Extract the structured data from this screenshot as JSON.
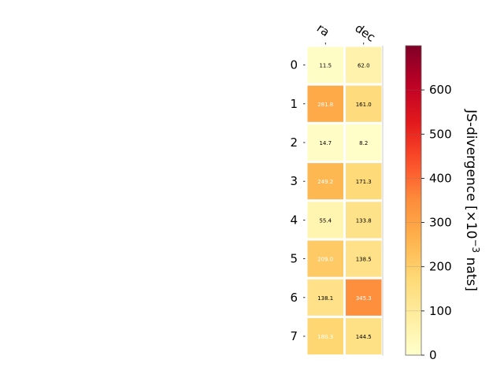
{
  "chart_data": {
    "type": "heatmap",
    "columns": [
      "ra",
      "dec"
    ],
    "rows": [
      "0",
      "1",
      "2",
      "3",
      "4",
      "5",
      "6",
      "7"
    ],
    "values": [
      [
        11.5,
        62.0
      ],
      [
        281.8,
        161.0
      ],
      [
        14.7,
        8.2
      ],
      [
        249.2,
        171.3
      ],
      [
        55.4,
        133.8
      ],
      [
        209.0,
        138.5
      ],
      [
        138.1,
        345.3
      ],
      [
        180.3,
        144.5
      ]
    ],
    "value_labels": [
      [
        "11.5",
        "62.0"
      ],
      [
        "281.8",
        "161.0"
      ],
      [
        "14.7",
        "8.2"
      ],
      [
        "249.2",
        "171.3"
      ],
      [
        "55.4",
        "133.8"
      ],
      [
        "209.0",
        "138.5"
      ],
      [
        "138.1",
        "345.3"
      ],
      [
        "180.3",
        "144.5"
      ]
    ],
    "colorbar": {
      "label": "JS-divergence [×10⁻³ nats]",
      "label_main": "JS-divergence [×10",
      "label_exp": "−3",
      "label_unit": " nats]",
      "range": [
        0,
        700
      ],
      "ticks": [
        "0",
        "100",
        "200",
        "300",
        "400",
        "500",
        "600"
      ],
      "colormap": "YlOrRd"
    },
    "colors": {
      "grid_line": "#ffffff",
      "text_dark": "#000000",
      "text_light": "#ffffff"
    }
  }
}
